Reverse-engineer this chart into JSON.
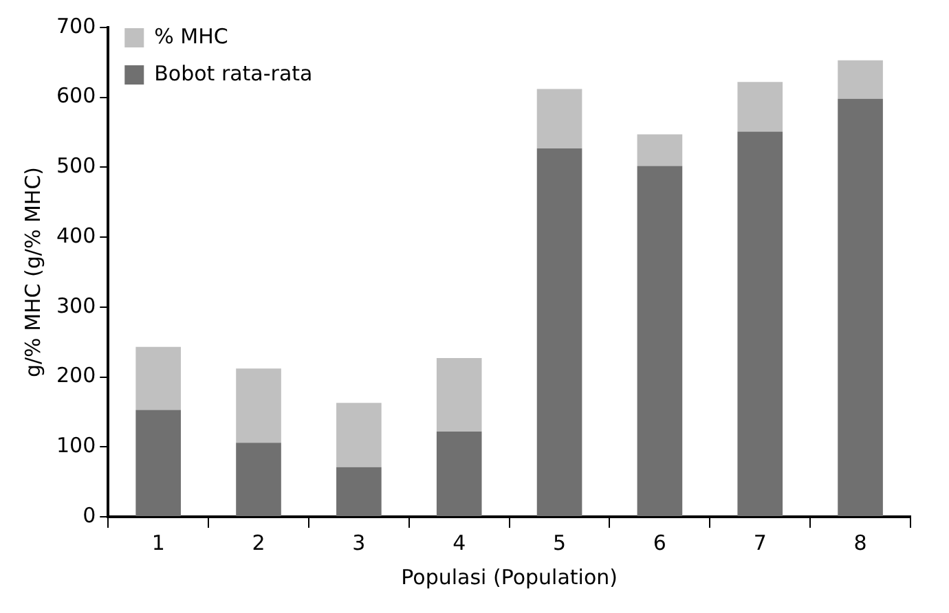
{
  "chart_data": {
    "type": "bar",
    "stacked": true,
    "xlabel": "Populasi (Population)",
    "ylabel": "g/% MHC (g/% MHC)",
    "categories": [
      "1",
      "2",
      "3",
      "4",
      "5",
      "6",
      "7",
      "8"
    ],
    "series": [
      {
        "name": "Bobot rata-rata",
        "color": "#707070",
        "values": [
          153,
          106,
          71,
          122,
          527,
          502,
          551,
          598
        ]
      },
      {
        "name": "% MHC",
        "color": "#c0c0c0",
        "values": [
          90,
          106,
          92,
          105,
          85,
          45,
          71,
          55
        ]
      }
    ],
    "ylim": [
      0,
      700
    ],
    "yticks": [
      0,
      100,
      200,
      300,
      400,
      500,
      600,
      700
    ],
    "grid": false,
    "legend": "top left"
  }
}
